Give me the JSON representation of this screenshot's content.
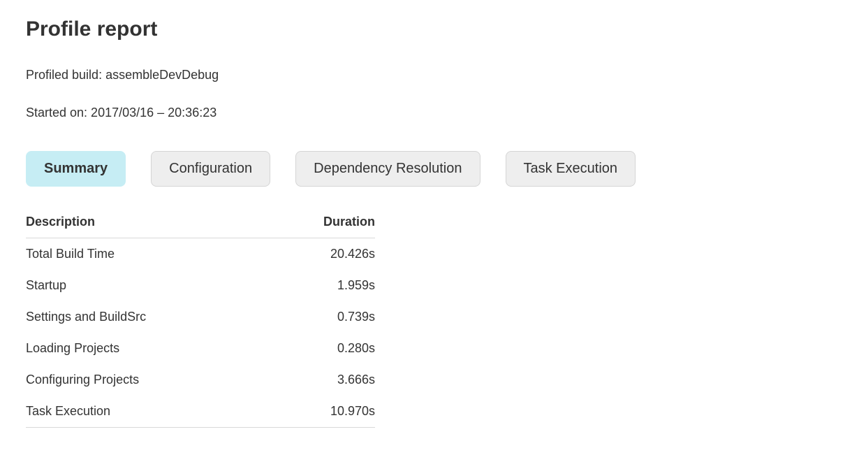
{
  "header": {
    "title": "Profile report",
    "profiled_build": "Profiled build: assembleDevDebug",
    "started_on": "Started on: 2017/03/16 – 20:36:23"
  },
  "tabs": [
    {
      "label": "Summary",
      "selected": true
    },
    {
      "label": "Configuration",
      "selected": false
    },
    {
      "label": "Dependency Resolution",
      "selected": false
    },
    {
      "label": "Task Execution",
      "selected": false
    }
  ],
  "table": {
    "columns": [
      "Description",
      "Duration"
    ],
    "rows": [
      {
        "description": "Total Build Time",
        "duration": "20.426s"
      },
      {
        "description": "Startup",
        "duration": "1.959s"
      },
      {
        "description": "Settings and BuildSrc",
        "duration": "0.739s"
      },
      {
        "description": "Loading Projects",
        "duration": "0.280s"
      },
      {
        "description": "Configuring Projects",
        "duration": "3.666s"
      },
      {
        "description": "Task Execution",
        "duration": "10.970s"
      }
    ]
  },
  "colors": {
    "selected_tab_background": "#c6edf4",
    "tab_background": "#eeeeee",
    "tab_border": "#d5d5d5",
    "text": "#333333",
    "table_rule": "#d9d9d9",
    "page_background": "#ffffff"
  }
}
